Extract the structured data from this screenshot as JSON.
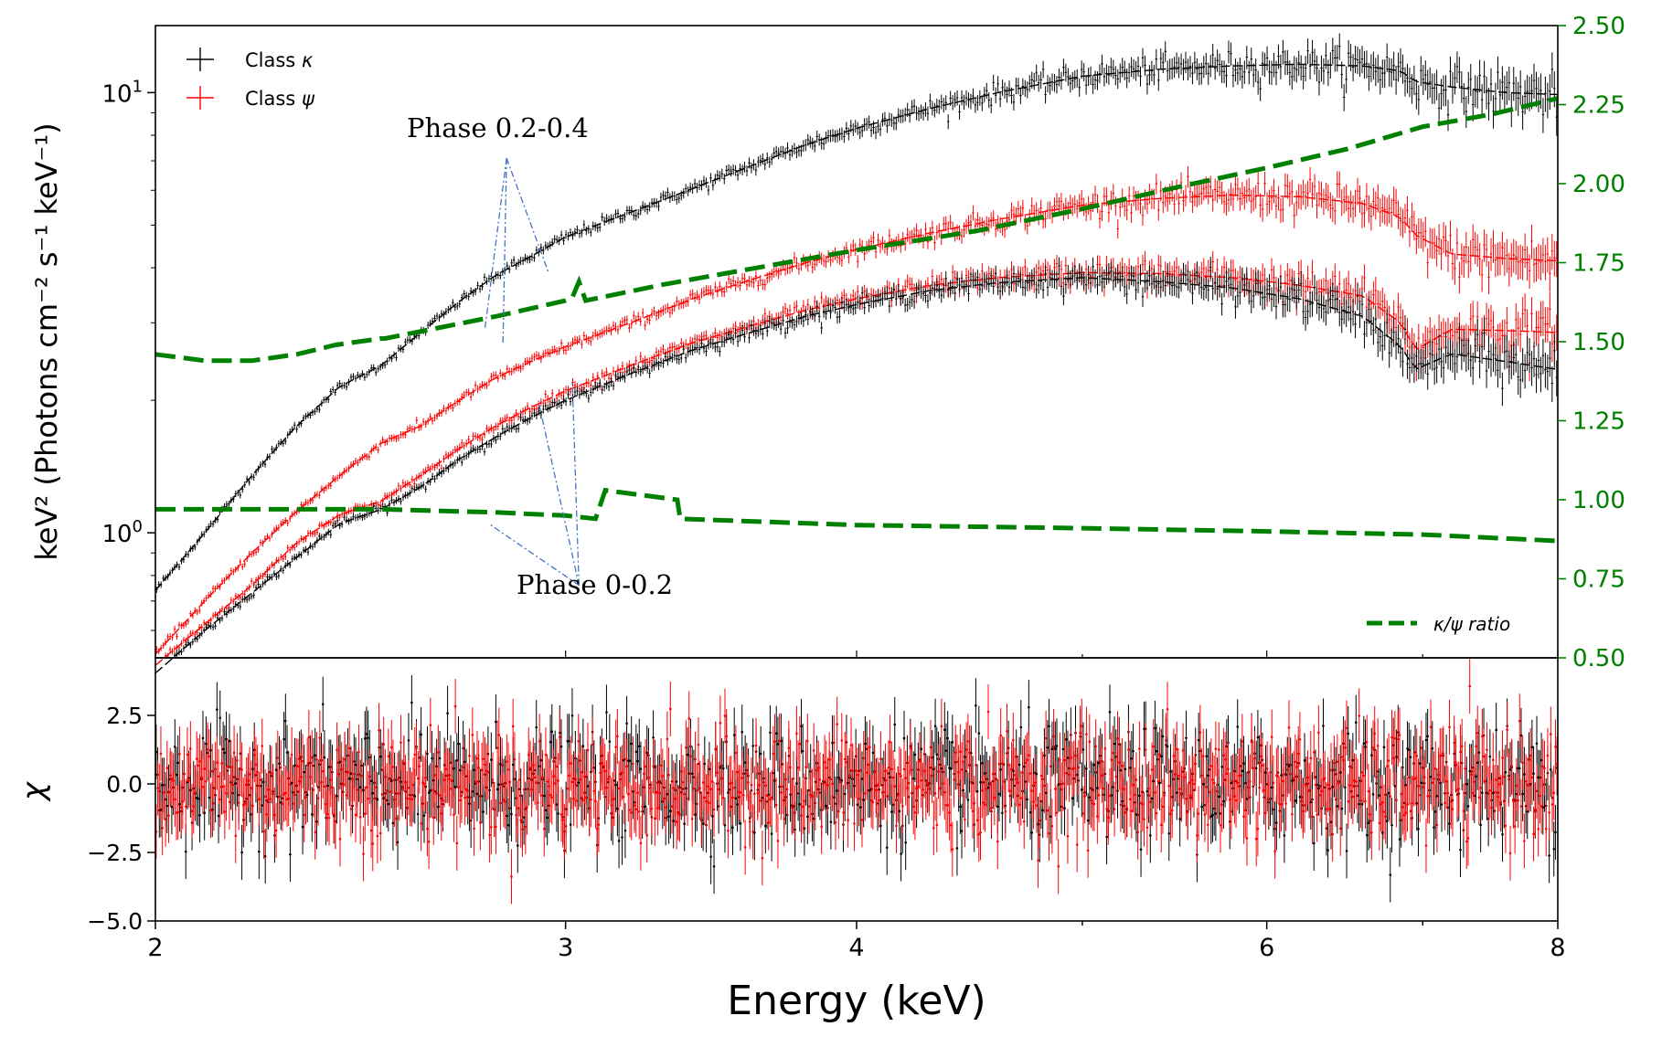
{
  "chart_data": [
    {
      "type": "scatter",
      "panel": "spectrum",
      "xlabel": "Energy (keV)",
      "ylabel": "keV² (Photons cm⁻² s⁻¹ keV⁻¹)",
      "ylabel_right": "",
      "xscale": "log",
      "yscale": "log",
      "xlim": [
        2,
        8
      ],
      "ylim": [
        0.52,
        14.2
      ],
      "ylim_right": [
        0.5,
        2.5
      ],
      "x_ticks": [
        2,
        3,
        4,
        6,
        8
      ],
      "x_tick_labels": [
        "2",
        "3",
        "4",
        "6",
        "8"
      ],
      "y_ticks": [
        1,
        10
      ],
      "y_tick_base": "10",
      "y_tick_exponents": [
        "0",
        "1"
      ],
      "y_right_ticks": [
        0.5,
        0.75,
        1.0,
        1.25,
        1.5,
        1.75,
        2.0,
        2.25,
        2.5
      ],
      "y_right_tick_labels": [
        "0.50",
        "0.75",
        "1.00",
        "1.25",
        "1.50",
        "1.75",
        "2.00",
        "2.25",
        "2.50"
      ],
      "legend_upper": [
        {
          "label": "Class ",
          "symbol": "κ",
          "color": "#000000"
        },
        {
          "label": "Class ",
          "symbol": "ψ",
          "color": "#ff0000"
        }
      ],
      "legend_lower": {
        "label": "κ/ψ ratio",
        "color": "#008000"
      },
      "annotations": [
        {
          "text": "Phase 0.2-0.4",
          "color": "#000000",
          "anchor_x": 2.83,
          "anchor_y": 7.1,
          "targets": [
            [
              2.77,
              2.9
            ],
            [
              2.82,
              2.7
            ],
            [
              2.95,
              3.9
            ]
          ]
        },
        {
          "text": "Phase 0-0.2",
          "color": "#000000",
          "anchor_x": 3.04,
          "anchor_y": 0.76,
          "targets": [
            [
              2.78,
              1.05
            ],
            [
              2.92,
              2.0
            ],
            [
              3.02,
              2.2
            ]
          ]
        }
      ],
      "series": [
        {
          "name": "Class κ (Phase 0.2-0.4)",
          "color": "#000000",
          "x": [
            2.0,
            2.1,
            2.2,
            2.3,
            2.4,
            2.5,
            2.6,
            2.7,
            2.8,
            2.9,
            3.0,
            3.2,
            3.4,
            3.6,
            3.8,
            4.0,
            4.3,
            4.6,
            5.0,
            5.4,
            5.8,
            6.2,
            6.6,
            6.85,
            6.95,
            7.2,
            7.6,
            8.0
          ],
          "y": [
            0.74,
            1.0,
            1.35,
            1.75,
            2.15,
            2.4,
            2.85,
            3.35,
            3.85,
            4.25,
            4.7,
            5.35,
            6.05,
            6.8,
            7.6,
            8.3,
            9.2,
            10.0,
            10.9,
            11.3,
            11.5,
            11.6,
            11.5,
            11.2,
            10.6,
            10.3,
            10.0,
            9.9
          ]
        },
        {
          "name": "Class ψ (Phase 0.2-0.4)",
          "color": "#ff0000",
          "x": [
            2.0,
            2.1,
            2.2,
            2.3,
            2.4,
            2.5,
            2.6,
            2.7,
            2.8,
            2.9,
            3.0,
            3.2,
            3.4,
            3.6,
            3.8,
            4.0,
            4.3,
            4.6,
            5.0,
            5.4,
            5.8,
            6.2,
            6.6,
            6.85,
            6.95,
            7.2,
            7.6,
            8.0
          ],
          "y": [
            0.53,
            0.7,
            0.9,
            1.12,
            1.35,
            1.6,
            1.75,
            2.0,
            2.25,
            2.45,
            2.65,
            3.0,
            3.4,
            3.75,
            4.1,
            4.4,
            4.8,
            5.15,
            5.55,
            5.75,
            5.85,
            5.8,
            5.6,
            5.2,
            4.75,
            4.3,
            4.2,
            4.15
          ]
        },
        {
          "name": "Class ψ (Phase 0-0.2)",
          "color": "#ff0000",
          "x": [
            2.0,
            2.1,
            2.2,
            2.3,
            2.4,
            2.5,
            2.6,
            2.7,
            2.8,
            2.9,
            3.0,
            3.2,
            3.4,
            3.6,
            3.8,
            4.0,
            4.3,
            4.6,
            5.0,
            5.4,
            5.8,
            6.2,
            6.6,
            6.85,
            6.95,
            7.2,
            7.6,
            8.0
          ],
          "y": [
            0.5,
            0.62,
            0.76,
            0.95,
            1.1,
            1.18,
            1.35,
            1.55,
            1.75,
            1.93,
            2.1,
            2.4,
            2.7,
            2.95,
            3.2,
            3.4,
            3.65,
            3.8,
            3.9,
            3.88,
            3.8,
            3.65,
            3.45,
            3.0,
            2.6,
            2.9,
            2.88,
            2.85
          ]
        },
        {
          "name": "Class κ (Phase 0-0.2)",
          "color": "#000000",
          "x": [
            2.0,
            2.1,
            2.2,
            2.3,
            2.4,
            2.5,
            2.6,
            2.7,
            2.8,
            2.9,
            3.0,
            3.2,
            3.4,
            3.6,
            3.8,
            4.0,
            4.3,
            4.6,
            5.0,
            5.4,
            5.8,
            6.2,
            6.6,
            6.85,
            6.95,
            7.2,
            7.6,
            8.0
          ],
          "y": [
            0.48,
            0.6,
            0.73,
            0.88,
            1.05,
            1.13,
            1.27,
            1.47,
            1.65,
            1.83,
            2.0,
            2.3,
            2.6,
            2.85,
            3.1,
            3.3,
            3.55,
            3.7,
            3.8,
            3.72,
            3.6,
            3.4,
            3.1,
            2.65,
            2.35,
            2.55,
            2.45,
            2.35
          ]
        }
      ],
      "ratio_series": [
        {
          "name": "κ/ψ ratio (Phase 0.2-0.4)",
          "color": "#008000",
          "x": [
            2.0,
            2.1,
            2.2,
            2.3,
            2.39,
            2.5,
            2.51,
            2.8,
            3.0,
            3.02,
            3.04,
            3.06,
            3.3,
            3.6,
            4.0,
            4.5,
            5.0,
            5.5,
            6.0,
            6.5,
            7.0,
            7.5,
            8.0
          ],
          "y": [
            1.46,
            1.44,
            1.44,
            1.46,
            1.49,
            1.51,
            1.51,
            1.58,
            1.63,
            1.64,
            1.69,
            1.63,
            1.68,
            1.73,
            1.79,
            1.85,
            1.92,
            1.99,
            2.05,
            2.11,
            2.18,
            2.22,
            2.27
          ]
        },
        {
          "name": "κ/ψ ratio (Phase 0-0.2)",
          "color": "#008000",
          "x": [
            2.0,
            2.5,
            2.8,
            3.0,
            3.09,
            3.12,
            3.35,
            3.36,
            4.0,
            5.0,
            6.0,
            7.0,
            8.0
          ],
          "y": [
            0.97,
            0.97,
            0.96,
            0.95,
            0.94,
            1.03,
            1.0,
            0.94,
            0.92,
            0.91,
            0.9,
            0.89,
            0.87
          ]
        }
      ]
    },
    {
      "type": "scatter",
      "panel": "residuals",
      "xlabel": "Energy (keV)",
      "ylabel": "χ",
      "xscale": "log",
      "xlim": [
        2,
        8
      ],
      "ylim": [
        -5.0,
        4.6
      ],
      "y_ticks": [
        2.5,
        0.0,
        -2.5,
        -5.0
      ],
      "y_tick_labels": [
        "2.5",
        "0.0",
        "−2.5",
        "−5.0"
      ],
      "series": [
        {
          "name": "Class κ residuals",
          "color": "#000000",
          "mean": 0,
          "spread": 1
        },
        {
          "name": "Class ψ residuals",
          "color": "#ff0000",
          "mean": 0,
          "spread": 1
        }
      ]
    }
  ]
}
